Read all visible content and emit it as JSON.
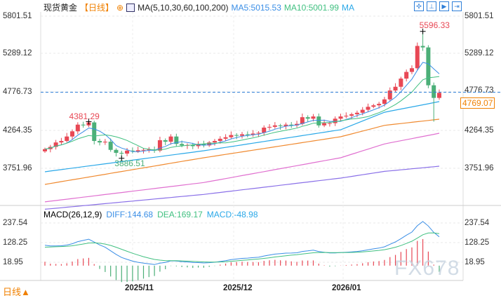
{
  "header": {
    "symbol": "现货黄金",
    "period": "【日线】",
    "indicator": "MA(5,10,30,60,100,200)",
    "ma5": "MA5:5015.53",
    "ma10": "MA10:5001.99",
    "ma_more": "MA"
  },
  "toolbar": [
    "crosshair-icon",
    "zoom-range-icon",
    "play-icon",
    "go-end-icon"
  ],
  "price_axis": [
    "5801.51",
    "5289.12",
    "4776.73",
    "4264.35",
    "3751.96"
  ],
  "macd_header": {
    "label": "MACD(26,12,9)",
    "diff": "DIFF:144.68",
    "dea": "DEA:169.17",
    "macd": "MACD:-48.98"
  },
  "macd_axis": [
    "237.54",
    "128.25",
    "18.95"
  ],
  "dates": [
    "2025/11",
    "2025/12",
    "2026/01"
  ],
  "period_button": "日线▲",
  "watermark": "FX678",
  "current_price": "4769.07",
  "colors": {
    "up": "#e84855",
    "down": "#4caf78",
    "ma5": "#3a8ee6",
    "ma10": "#40c080",
    "ma30": "#2aa8e8",
    "ma60": "#f08a30",
    "ma100": "#e070d0",
    "ma200": "#8a70e8",
    "diff": "#3a8ee6",
    "dea": "#40c080"
  },
  "chart_data": {
    "type": "candlestick",
    "ylim": [
      3751.96,
      5801.51
    ],
    "annotations": {
      "high": "5596.33",
      "low": "3886.51",
      "local_high": "4381.29",
      "last_line": "4776.73"
    },
    "closes": [
      4010,
      4040,
      4100,
      4120,
      4180,
      4250,
      4340,
      4330,
      4370,
      4120,
      4100,
      4110,
      4000,
      3960,
      3950,
      3990,
      3980,
      3995,
      4000,
      4005,
      3990,
      4130,
      4110,
      4180,
      4080,
      4060,
      4065,
      4050,
      4080,
      4060,
      4100,
      4120,
      4150,
      4170,
      4200,
      4190,
      4210,
      4200,
      4220,
      4230,
      4300,
      4310,
      4330,
      4320,
      4340,
      4330,
      4350,
      4440,
      4420,
      4450,
      4330,
      4360,
      4360,
      4420,
      4450,
      4460,
      4480,
      4500,
      4540,
      4580,
      4600,
      4620,
      4680,
      4800,
      4850,
      4960,
      5050,
      5100,
      5400,
      5380,
      4870,
      4700,
      4769.07
    ],
    "long_ma": {
      "knots": [
        0,
        29,
        54,
        62,
        72
      ],
      "ma30": [
        3705,
        3988,
        4271,
        4507,
        4650
      ],
      "ma60": [
        3535,
        3894,
        4177,
        4330,
        4413
      ],
      "ma100": [
        3300,
        3560,
        3894,
        4080,
        4224
      ],
      "ma200": [
        3200,
        3400,
        3620,
        3710,
        3780
      ]
    }
  }
}
